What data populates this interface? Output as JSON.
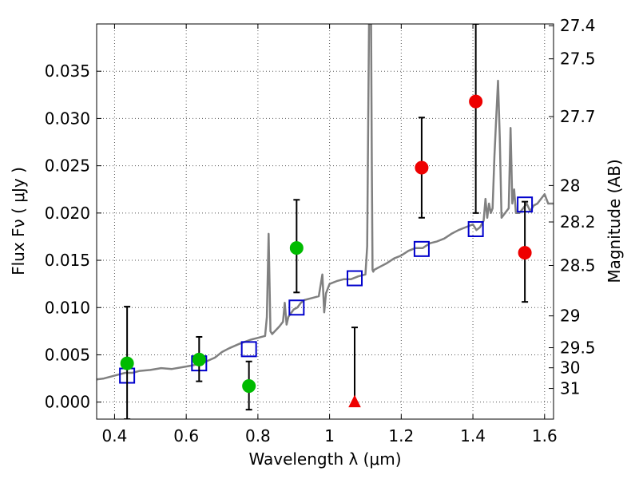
{
  "chart_data": {
    "type": "scatter",
    "xlabel": "Wavelength  λ (μm)",
    "ylabel": "Flux  Fν  ( μJy )",
    "y2label": "Magnitude (AB)",
    "xlim": [
      0.35,
      1.625
    ],
    "ylim": [
      -0.0018,
      0.04
    ],
    "grid": true,
    "x_ticks": [
      {
        "value": 0.4,
        "label": "0.4"
      },
      {
        "value": 0.6,
        "label": "0.6"
      },
      {
        "value": 0.8,
        "label": "0.8"
      },
      {
        "value": 1.0,
        "label": "1"
      },
      {
        "value": 1.2,
        "label": "1.2"
      },
      {
        "value": 1.4,
        "label": "1.4"
      },
      {
        "value": 1.6,
        "label": "1.6"
      }
    ],
    "y_ticks": [
      {
        "value": 0.0,
        "label": "0.000"
      },
      {
        "value": 0.005,
        "label": "0.005"
      },
      {
        "value": 0.01,
        "label": "0.010"
      },
      {
        "value": 0.015,
        "label": "0.015"
      },
      {
        "value": 0.02,
        "label": "0.020"
      },
      {
        "value": 0.025,
        "label": "0.025"
      },
      {
        "value": 0.03,
        "label": "0.030"
      },
      {
        "value": 0.035,
        "label": "0.035"
      }
    ],
    "y2_ticks": [
      {
        "mag": 27.4,
        "label": "27.4"
      },
      {
        "mag": 27.5,
        "label": "27.5"
      },
      {
        "mag": 27.7,
        "label": "27.7"
      },
      {
        "mag": 28.0,
        "label": "28"
      },
      {
        "mag": 28.2,
        "label": "28.2"
      },
      {
        "mag": 28.5,
        "label": "28.5"
      },
      {
        "mag": 29.0,
        "label": "29"
      },
      {
        "mag": 29.5,
        "label": "29.5"
      },
      {
        "mag": 30.0,
        "label": "30"
      },
      {
        "mag": 31.0,
        "label": "31"
      }
    ],
    "model_spectrum": {
      "color": "#808080",
      "x": [
        0.35,
        0.37,
        0.39,
        0.41,
        0.43,
        0.45,
        0.47,
        0.5,
        0.53,
        0.56,
        0.59,
        0.62,
        0.65,
        0.68,
        0.7,
        0.72,
        0.75,
        0.78,
        0.8,
        0.82,
        0.825,
        0.83,
        0.835,
        0.84,
        0.86,
        0.87,
        0.875,
        0.88,
        0.885,
        0.89,
        0.9,
        0.91,
        0.92,
        0.93,
        0.95,
        0.97,
        0.98,
        0.985,
        0.99,
        1.0,
        1.02,
        1.04,
        1.06,
        1.08,
        1.1,
        1.105,
        1.11,
        1.112,
        1.114,
        1.116,
        1.118,
        1.12,
        1.122,
        1.125,
        1.14,
        1.16,
        1.18,
        1.2,
        1.22,
        1.24,
        1.26,
        1.28,
        1.3,
        1.32,
        1.34,
        1.36,
        1.38,
        1.4,
        1.41,
        1.42,
        1.43,
        1.435,
        1.44,
        1.445,
        1.45,
        1.455,
        1.46,
        1.465,
        1.47,
        1.475,
        1.48,
        1.49,
        1.5,
        1.505,
        1.51,
        1.515,
        1.52,
        1.53,
        1.54,
        1.55,
        1.56,
        1.57,
        1.58,
        1.59,
        1.6,
        1.61,
        1.625
      ],
      "y": [
        0.0024,
        0.0025,
        0.0027,
        0.0029,
        0.0031,
        0.0031,
        0.0033,
        0.0034,
        0.0036,
        0.0035,
        0.0037,
        0.0039,
        0.0042,
        0.0047,
        0.0053,
        0.0057,
        0.0062,
        0.0066,
        0.0068,
        0.007,
        0.009,
        0.0178,
        0.0075,
        0.0072,
        0.008,
        0.0085,
        0.0105,
        0.0082,
        0.009,
        0.0093,
        0.0098,
        0.01,
        0.0105,
        0.0108,
        0.011,
        0.0112,
        0.0135,
        0.0095,
        0.0115,
        0.0125,
        0.0128,
        0.013,
        0.013,
        0.0133,
        0.0135,
        0.0165,
        0.04,
        0.04,
        0.04,
        0.04,
        0.025,
        0.014,
        0.0138,
        0.014,
        0.0143,
        0.0147,
        0.0152,
        0.0155,
        0.016,
        0.0163,
        0.0163,
        0.0168,
        0.017,
        0.0173,
        0.0178,
        0.0182,
        0.0185,
        0.0188,
        0.0182,
        0.0185,
        0.0192,
        0.0215,
        0.0195,
        0.021,
        0.02,
        0.0205,
        0.026,
        0.03,
        0.034,
        0.028,
        0.0195,
        0.02,
        0.0205,
        0.029,
        0.021,
        0.0225,
        0.02,
        0.02,
        0.0205,
        0.021,
        0.0202,
        0.0208,
        0.021,
        0.0215,
        0.022,
        0.021,
        0.021
      ]
    },
    "model_photometry": {
      "color": "#0000cc",
      "x": [
        0.435,
        0.636,
        0.775,
        0.908,
        1.07,
        1.257,
        1.408,
        1.545
      ],
      "y": [
        0.0028,
        0.0041,
        0.0056,
        0.01,
        0.0131,
        0.0162,
        0.0183,
        0.0209
      ]
    },
    "observed_photometry": [
      {
        "x": 0.435,
        "y": 0.0041,
        "yerr_low": -0.0018,
        "yerr_high": 0.0101,
        "color": "#00bb00",
        "marker": "circle"
      },
      {
        "x": 0.636,
        "y": 0.0045,
        "yerr_low": 0.0022,
        "yerr_high": 0.0069,
        "color": "#00bb00",
        "marker": "circle"
      },
      {
        "x": 0.775,
        "y": 0.0017,
        "yerr_low": -0.0008,
        "yerr_high": 0.0043,
        "color": "#00bb00",
        "marker": "circle"
      },
      {
        "x": 0.908,
        "y": 0.0163,
        "yerr_low": 0.0116,
        "yerr_high": 0.0214,
        "color": "#00bb00",
        "marker": "circle"
      },
      {
        "x": 1.07,
        "y": 0.0,
        "yerr_low": 0.0,
        "yerr_high": 0.0079,
        "color": "#ee0000",
        "marker": "triangle"
      },
      {
        "x": 1.257,
        "y": 0.0248,
        "yerr_low": 0.0195,
        "yerr_high": 0.0301,
        "color": "#ee0000",
        "marker": "circle"
      },
      {
        "x": 1.408,
        "y": 0.0318,
        "yerr_low": 0.02,
        "yerr_high": 0.04,
        "color": "#ee0000",
        "marker": "circle"
      },
      {
        "x": 1.545,
        "y": 0.0158,
        "yerr_low": 0.0106,
        "yerr_high": 0.0212,
        "color": "#ee0000",
        "marker": "circle"
      }
    ]
  }
}
